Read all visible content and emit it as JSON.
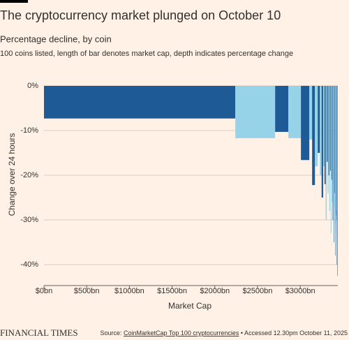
{
  "chart_data": {
    "type": "bar",
    "title": "The cryptocurrency market plunged on October 10",
    "subtitle": "Percentage decline, by coin",
    "note": "100 coins listed, length of bar denotes market cap, depth indicates percentage change",
    "x_label": "Market Cap",
    "y_label": "Change over 24 hours",
    "widths": [
      2240,
      466,
      155,
      147,
      98,
      33,
      33,
      33,
      25,
      20,
      18,
      16,
      14,
      12,
      11,
      10,
      9,
      9,
      8,
      8,
      7,
      7,
      6,
      6,
      5,
      5,
      5,
      4,
      4,
      4,
      3,
      3,
      2,
      2,
      2,
      2,
      2
    ],
    "values": [
      -7.3,
      -11.7,
      -10.3,
      -11.7,
      -16.6,
      -12,
      -22.2,
      -18,
      -15,
      -20,
      -25,
      -18,
      -22,
      -30,
      -17,
      -24,
      -20,
      -28,
      -19,
      -33,
      -21,
      -26,
      -30,
      -22,
      -35,
      -27,
      -24,
      -31,
      -38,
      -25,
      -29,
      -33,
      -40,
      -28,
      -30,
      -36,
      -42.5
    ],
    "colors": [
      "#1e5a96",
      "#96d2e8"
    ],
    "xlim": [
      0,
      3440
    ],
    "ylim": [
      -45,
      0
    ],
    "xticks": [
      {
        "value": 0,
        "label": "$0bn"
      },
      {
        "value": 500,
        "label": "$500bn"
      },
      {
        "value": 1000,
        "label": "$1000bn"
      },
      {
        "value": 1500,
        "label": "$1500bn"
      },
      {
        "value": 2000,
        "label": "$2000bn"
      },
      {
        "value": 2500,
        "label": "$2500bn"
      },
      {
        "value": 3000,
        "label": "$3000bn"
      }
    ],
    "yticks": [
      {
        "value": 0,
        "label": "0%"
      },
      {
        "value": -10,
        "label": "-10%"
      },
      {
        "value": -20,
        "label": "-20%"
      },
      {
        "value": -30,
        "label": "-30%"
      },
      {
        "value": -40,
        "label": "-40%"
      }
    ],
    "grid": true,
    "brand": "FINANCIAL TIMES",
    "source_prefix": "Source: ",
    "source_link": "CoinMarketCap Top 100 cryptocurrencies",
    "source_suffix": " • Accessed 12.30pm October 11, 2025"
  }
}
